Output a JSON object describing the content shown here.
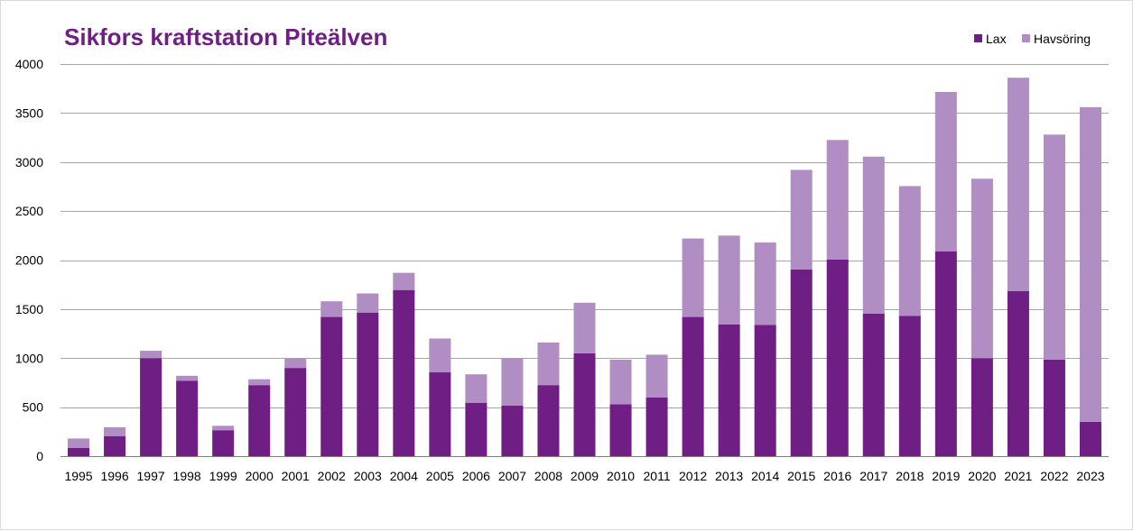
{
  "colors": {
    "lax": "#6f1f83",
    "havsoring": "#b08ec3",
    "title": "#6f1f83"
  },
  "chart_data": {
    "type": "bar",
    "stacked": true,
    "title": "Sikfors kraftstation Piteälven",
    "xlabel": "",
    "ylabel": "",
    "ylim": [
      0,
      4000
    ],
    "yticks": [
      0,
      500,
      1000,
      1500,
      2000,
      2500,
      3000,
      3500,
      4000
    ],
    "grid": true,
    "legend_position": "top-right",
    "categories": [
      "1995",
      "1996",
      "1997",
      "1998",
      "1999",
      "2000",
      "2001",
      "2002",
      "2003",
      "2004",
      "2005",
      "2006",
      "2007",
      "2008",
      "2009",
      "2010",
      "2011",
      "2012",
      "2013",
      "2014",
      "2015",
      "2016",
      "2017",
      "2018",
      "2019",
      "2020",
      "2021",
      "2022",
      "2023"
    ],
    "series": [
      {
        "name": "Lax",
        "color": "#6f1f83",
        "values": [
          85,
          205,
          1000,
          770,
          265,
          725,
          900,
          1420,
          1465,
          1695,
          855,
          545,
          515,
          725,
          1050,
          530,
          600,
          1420,
          1345,
          1340,
          1905,
          2005,
          1455,
          1430,
          2090,
          1000,
          1685,
          985,
          350
        ]
      },
      {
        "name": "Havsöring",
        "color": "#b08ec3",
        "values": [
          95,
          90,
          75,
          50,
          45,
          60,
          100,
          160,
          195,
          175,
          345,
          290,
          485,
          435,
          515,
          455,
          435,
          800,
          905,
          840,
          1015,
          1220,
          1600,
          1325,
          1625,
          1830,
          2175,
          2295,
          3210
        ]
      }
    ]
  }
}
